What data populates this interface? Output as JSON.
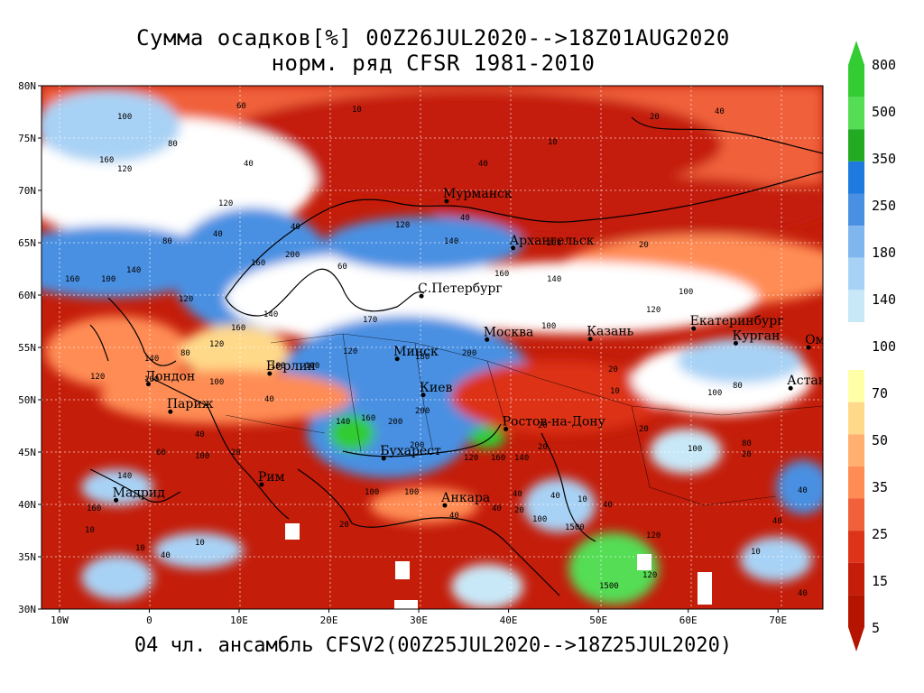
{
  "title": {
    "line1": "Сумма осадков[%] 00Z26JUL2020-->18Z01AUG2020",
    "line2": "норм. ряд CFSR 1981-2010"
  },
  "footer": "04 чл. ансамбль CFSV2(00Z25JUL2020-->18Z25JUL2020)",
  "lat_labels": [
    "80N",
    "75N",
    "70N",
    "65N",
    "60N",
    "55N",
    "50N",
    "45N",
    "40N",
    "35N",
    "30N"
  ],
  "lon_labels": [
    "10W",
    "0",
    "10E",
    "20E",
    "30E",
    "40E",
    "50E",
    "60E",
    "70E"
  ],
  "colorbar": {
    "labels": [
      "800",
      "500",
      "350",
      "250",
      "180",
      "140",
      "100",
      "70",
      "50",
      "35",
      "25",
      "15",
      "5"
    ],
    "colors_upper": [
      "#33cc33",
      "#55dd55",
      "#22aa22",
      "#1f7ae0",
      "#4a90e2",
      "#7fb6ee",
      "#a8d2f5",
      "#c8e8f8"
    ],
    "colors_lower": [
      "#ffffa8",
      "#ffd98a",
      "#ffb070",
      "#ff8c55",
      "#f0603a",
      "#dd3318",
      "#c41d0a",
      "#b51500"
    ],
    "arrow_top_color": "#33cc33",
    "arrow_bottom_color": "#b51500"
  },
  "cities": [
    {
      "name": "Мурманск",
      "lon": 33.1,
      "lat": 68.97
    },
    {
      "name": "Архангельск",
      "lon": 40.5,
      "lat": 64.5
    },
    {
      "name": "С.Петербург",
      "lon": 30.3,
      "lat": 59.9
    },
    {
      "name": "Москва",
      "lon": 37.6,
      "lat": 55.75
    },
    {
      "name": "Казань",
      "lon": 49.1,
      "lat": 55.8
    },
    {
      "name": "Екатеринбург",
      "lon": 60.6,
      "lat": 56.8
    },
    {
      "name": "Курган",
      "lon": 65.3,
      "lat": 55.4
    },
    {
      "name": "Омск",
      "lon": 73.4,
      "lat": 55.0
    },
    {
      "name": "Астана",
      "lon": 71.4,
      "lat": 51.1
    },
    {
      "name": "Минск",
      "lon": 27.6,
      "lat": 53.9
    },
    {
      "name": "Берлин",
      "lon": 13.4,
      "lat": 52.5
    },
    {
      "name": "Лондон",
      "lon": -0.1,
      "lat": 51.5
    },
    {
      "name": "Париж",
      "lon": 2.35,
      "lat": 48.86
    },
    {
      "name": "Киев",
      "lon": 30.5,
      "lat": 50.45
    },
    {
      "name": "Ростов-на-Дону",
      "lon": 39.7,
      "lat": 47.2
    },
    {
      "name": "Бухарест",
      "lon": 26.1,
      "lat": 44.4
    },
    {
      "name": "Рим",
      "lon": 12.5,
      "lat": 41.9
    },
    {
      "name": "Мадрид",
      "lon": -3.7,
      "lat": 40.4
    },
    {
      "name": "Анкара",
      "lon": 32.9,
      "lat": 39.9
    }
  ],
  "map_extent": {
    "lon_min": -12,
    "lon_max": 75,
    "lat_min": 30,
    "lat_max": 80
  }
}
